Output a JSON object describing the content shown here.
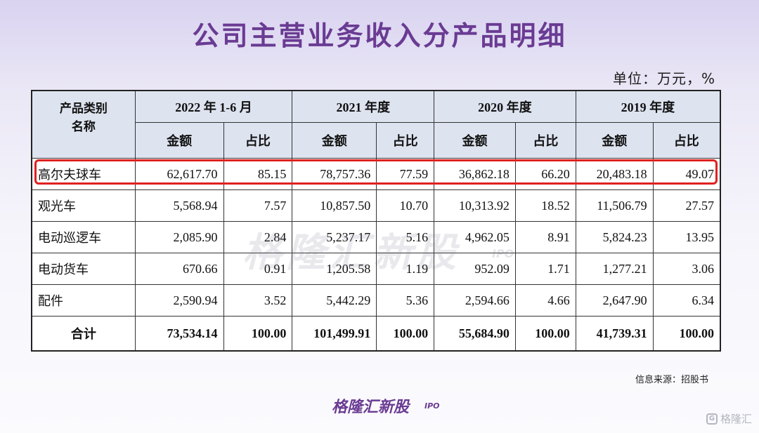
{
  "title": "公司主营业务收入分产品明细",
  "unit": "单位：万元，%",
  "table": {
    "corner_header_line1": "产品类别",
    "corner_header_line2": "名称",
    "periods": [
      "2022 年 1-6 月",
      "2021 年度",
      "2020 年度",
      "2019 年度"
    ],
    "sub_headers": [
      "金额",
      "占比",
      "金额",
      "占比",
      "金额",
      "占比",
      "金额",
      "占比"
    ],
    "rows": [
      {
        "name": "高尔夫球车",
        "cells": [
          "62,617.70",
          "85.15",
          "78,757.36",
          "77.59",
          "36,862.18",
          "66.20",
          "20,483.18",
          "49.07"
        ]
      },
      {
        "name": "观光车",
        "cells": [
          "5,568.94",
          "7.57",
          "10,857.50",
          "10.70",
          "10,313.92",
          "18.52",
          "11,506.79",
          "27.57"
        ]
      },
      {
        "name": "电动巡逻车",
        "cells": [
          "2,085.90",
          "2.84",
          "5,237.17",
          "5.16",
          "4,962.05",
          "8.91",
          "5,824.23",
          "13.95"
        ]
      },
      {
        "name": "电动货车",
        "cells": [
          "670.66",
          "0.91",
          "1,205.58",
          "1.19",
          "952.09",
          "1.71",
          "1,277.21",
          "3.06"
        ]
      },
      {
        "name": "配件",
        "cells": [
          "2,590.94",
          "3.52",
          "5,442.29",
          "5.36",
          "2,594.66",
          "4.66",
          "2,647.90",
          "6.34"
        ]
      }
    ],
    "total": {
      "name": "合计",
      "cells": [
        "73,534.14",
        "100.00",
        "101,499.91",
        "100.00",
        "55,684.90",
        "100.00",
        "41,739.31",
        "100.00"
      ]
    }
  },
  "highlight_color": "#e02020",
  "watermark": "格隆汇新股",
  "watermark_sub": "IPO",
  "source": "信息来源：招股书",
  "logo": "格隆汇新股",
  "logo_sub": "IPO",
  "corner_brand": "格隆汇",
  "corner_icon_glyph": "G"
}
